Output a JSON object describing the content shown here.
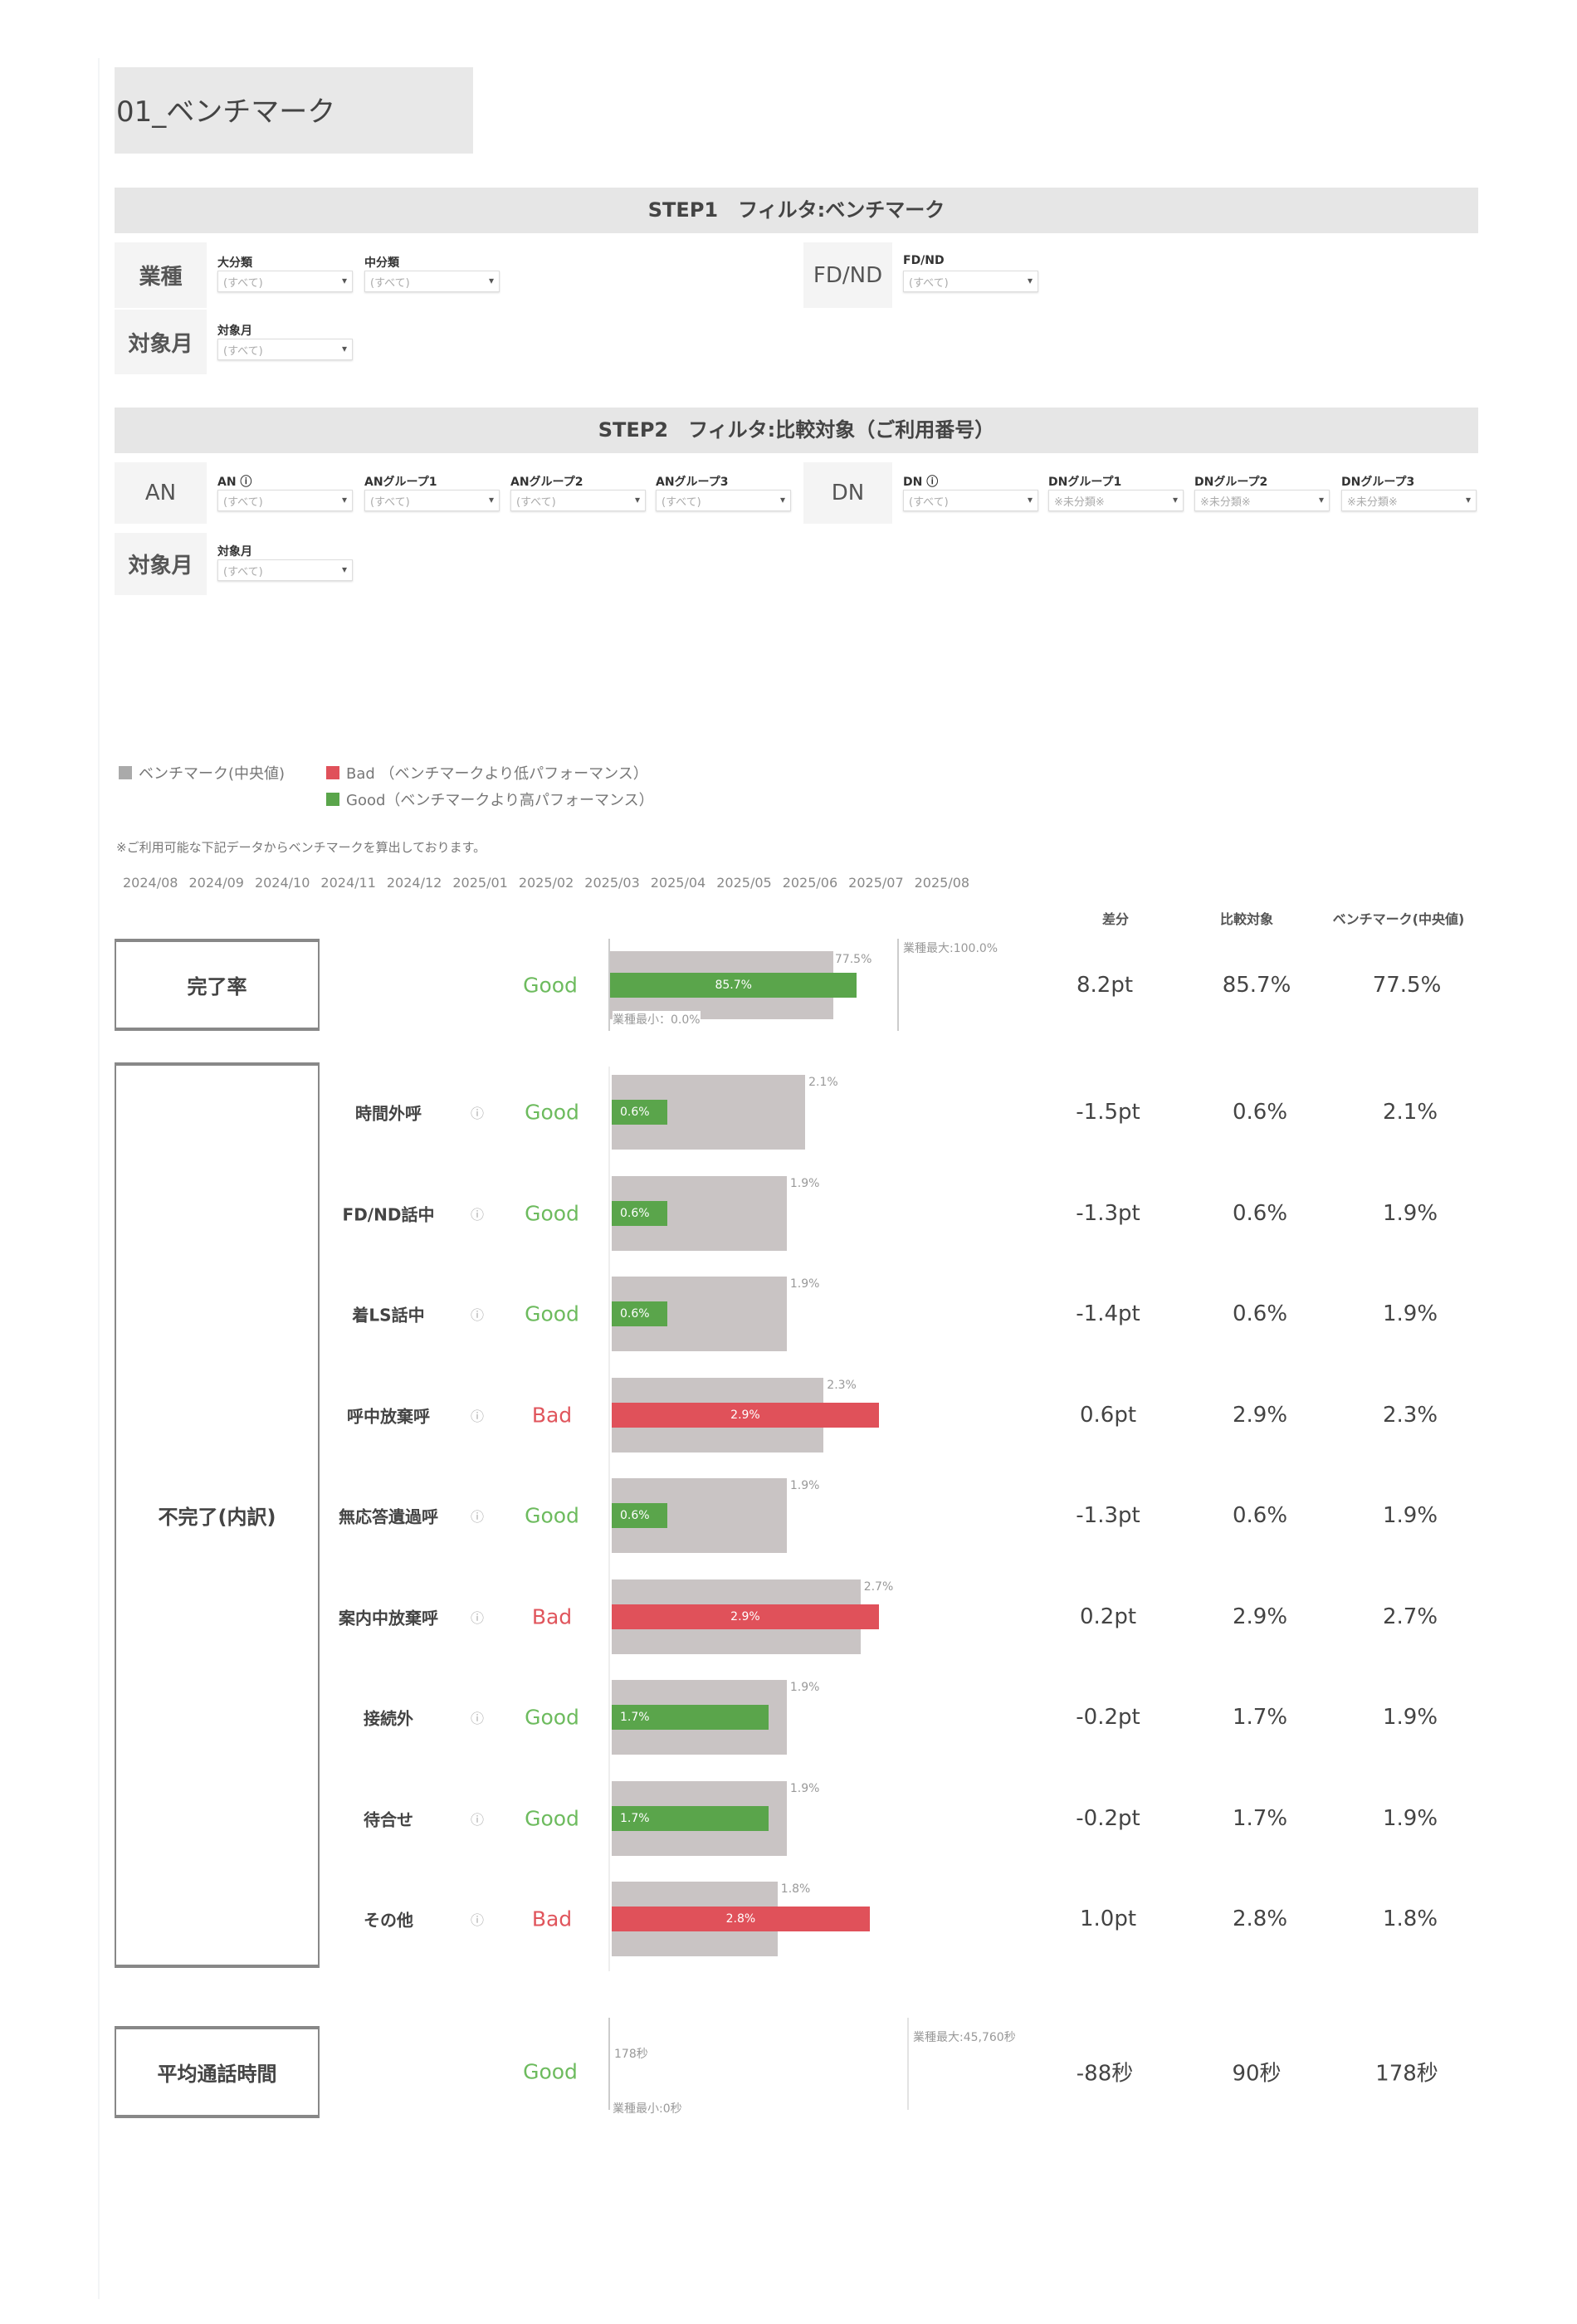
{
  "title": "01_ベンチマーク",
  "step1": {
    "header": "STEP1　フィルタ:ベンチマーク",
    "industry_label": "業種",
    "fdnd_label": "FD/ND",
    "month_label": "対象月",
    "filters": [
      {
        "label": "大分類",
        "value": "(すべて)"
      },
      {
        "label": "中分類",
        "value": "(すべて)"
      },
      {
        "label": "FD/ND",
        "value": "(すべて)"
      },
      {
        "label": "対象月",
        "value": "(すべて)"
      }
    ]
  },
  "step2": {
    "header": "STEP2　フィルタ:比較対象（ご利用番号）",
    "an_label": "AN",
    "dn_label": "DN",
    "month_label": "対象月",
    "filters": [
      {
        "label": "AN ⓘ",
        "value": "(すべて)"
      },
      {
        "label": "ANグループ1",
        "value": "(すべて)"
      },
      {
        "label": "ANグループ2",
        "value": "(すべて)"
      },
      {
        "label": "ANグループ3",
        "value": "(すべて)"
      },
      {
        "label": "DN ⓘ",
        "value": "(すべて)"
      },
      {
        "label": "DNグループ1",
        "value": "※未分類※"
      },
      {
        "label": "DNグループ2",
        "value": "※未分類※"
      },
      {
        "label": "DNグループ3",
        "value": "※未分類※"
      },
      {
        "label": "対象月",
        "value": "(すべて)"
      }
    ]
  },
  "legend": {
    "benchmark": "ベンチマーク(中央値)",
    "bad": "Bad （ベンチマークより低パフォーマンス）",
    "good": "Good（ベンチマークより高パフォーマンス）"
  },
  "note": "※ご利用可能な下記データからベンチマークを算出しております。",
  "months": [
    "2024/08",
    "2024/09",
    "2024/10",
    "2024/11",
    "2024/12",
    "2025/01",
    "2025/02",
    "2025/03",
    "2025/04",
    "2025/05",
    "2025/06",
    "2025/07",
    "2025/08"
  ],
  "columns": {
    "diff": "差分",
    "compare": "比較対象",
    "benchmark": "ベンチマーク(中央値)"
  },
  "colors": {
    "good_bar": "#5aa54b",
    "bad_bar": "#e0515a",
    "benchmark_bar": "#c9c4c4",
    "good_text": "#6dbb5e",
    "bad_text": "#e0555c"
  },
  "completion": {
    "category": "完了率",
    "status": "Good",
    "compare": 85.7,
    "benchmark": 77.5,
    "compare_label": "85.7%",
    "benchmark_label": "77.5%",
    "diff": "8.2pt",
    "max_label": "業種最大:100.0%",
    "min_label": "業種最小：0.0%"
  },
  "incomplete": {
    "category": "不完了(内訳)",
    "rows": [
      {
        "name": "時間外呼",
        "status": "Good",
        "compare": 0.6,
        "benchmark": 2.1,
        "diff": "-1.5pt",
        "compare_label": "0.6%",
        "benchmark_label": "2.1%"
      },
      {
        "name": "FD/ND話中",
        "status": "Good",
        "compare": 0.6,
        "benchmark": 1.9,
        "diff": "-1.3pt",
        "compare_label": "0.6%",
        "benchmark_label": "1.9%"
      },
      {
        "name": "着LS話中",
        "status": "Good",
        "compare": 0.6,
        "benchmark": 1.9,
        "diff": "-1.4pt",
        "compare_label": "0.6%",
        "benchmark_label": "1.9%"
      },
      {
        "name": "呼中放棄呼",
        "status": "Bad",
        "compare": 2.9,
        "benchmark": 2.3,
        "diff": "0.6pt",
        "compare_label": "2.9%",
        "benchmark_label": "2.3%"
      },
      {
        "name": "無応答遺過呼",
        "status": "Good",
        "compare": 0.6,
        "benchmark": 1.9,
        "diff": "-1.3pt",
        "compare_label": "0.6%",
        "benchmark_label": "1.9%"
      },
      {
        "name": "案内中放棄呼",
        "status": "Bad",
        "compare": 2.9,
        "benchmark": 2.7,
        "diff": "0.2pt",
        "compare_label": "2.9%",
        "benchmark_label": "2.7%"
      },
      {
        "name": "接続外",
        "status": "Good",
        "compare": 1.7,
        "benchmark": 1.9,
        "diff": "-0.2pt",
        "compare_label": "1.7%",
        "benchmark_label": "1.9%"
      },
      {
        "name": "待合せ",
        "status": "Good",
        "compare": 1.7,
        "benchmark": 1.9,
        "diff": "-0.2pt",
        "compare_label": "1.7%",
        "benchmark_label": "1.9%"
      },
      {
        "name": "その他",
        "status": "Bad",
        "compare": 2.8,
        "benchmark": 1.8,
        "diff": "1.0pt",
        "compare_label": "2.8%",
        "benchmark_label": "1.8%"
      }
    ]
  },
  "avg_call": {
    "category": "平均通話時間",
    "status": "Good",
    "diff": "-88秒",
    "compare": "90秒",
    "benchmark": "178秒",
    "bar_label": "178秒",
    "max_label": "業種最大:45,760秒",
    "min_label": "業種最小:0秒"
  },
  "info_icon": "info-icon"
}
